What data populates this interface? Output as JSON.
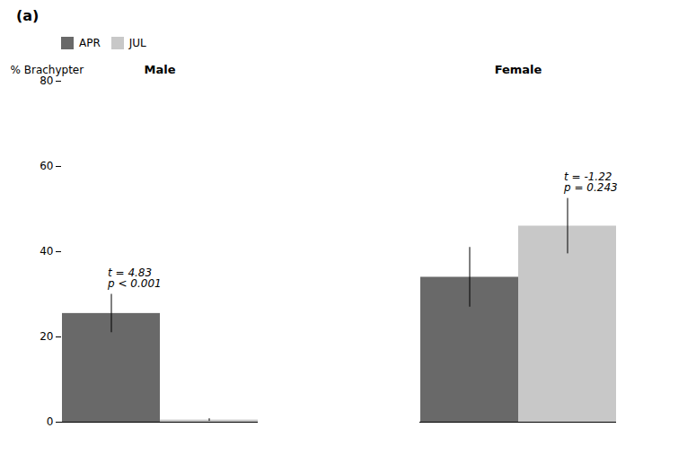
{
  "chart_data": {
    "type": "bar",
    "title": "(a)",
    "categories": [
      "Male",
      "Female"
    ],
    "series": [
      {
        "name": "APR",
        "color": "#696969",
        "values": [
          25.5,
          34.0
        ],
        "errors": [
          4.5,
          7.0
        ]
      },
      {
        "name": "JUL",
        "color": "#c8c8c8",
        "values": [
          0.5,
          46.0
        ],
        "errors": [
          0.3,
          6.5
        ]
      }
    ],
    "ylabel": "% Brachypter",
    "ylim": [
      0,
      80
    ],
    "yticks": [
      0,
      20,
      40,
      60,
      80
    ],
    "annotations": [
      {
        "text": "t = 4.83",
        "category": "Male",
        "series": "APR"
      },
      {
        "text": "p < 0.001",
        "category": "Male",
        "series": "APR"
      },
      {
        "text": "t = -1.22",
        "category": "Female",
        "series": "JUL"
      },
      {
        "text": "p = 0.243",
        "category": "Female",
        "series": "JUL"
      }
    ],
    "legend": "upper left",
    "grid": false
  }
}
